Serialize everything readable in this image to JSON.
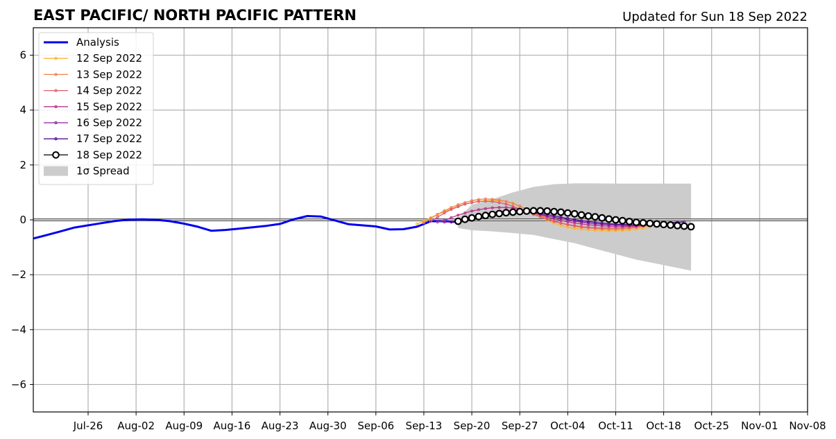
{
  "chart_data": {
    "type": "line",
    "title": "EAST PACIFIC/ NORTH PACIFIC PATTERN",
    "subtitle": "Updated for Sun 18 Sep 2022",
    "xlabel": "",
    "ylabel": "",
    "xlim": [
      "2022-07-18",
      "2022-11-08"
    ],
    "ylim": [
      -7,
      7
    ],
    "grid": true,
    "legend_position": "top-left",
    "xticks": [
      "Jul-26",
      "Aug-02",
      "Aug-09",
      "Aug-16",
      "Aug-23",
      "Aug-30",
      "Sep-06",
      "Sep-13",
      "Sep-20",
      "Sep-27",
      "Oct-04",
      "Oct-11",
      "Oct-18",
      "Oct-25",
      "Nov-01",
      "Nov-08"
    ],
    "yticks": [
      -6,
      -4,
      -2,
      0,
      2,
      4,
      6
    ],
    "ytick_labels": [
      "−6",
      "−4",
      "−2",
      "0",
      "2",
      "4",
      "6"
    ],
    "analysis": {
      "name": "Analysis",
      "color": "#0000ee",
      "points": [
        [
          "2022-07-18",
          -0.68
        ],
        [
          "2022-07-20",
          -0.55
        ],
        [
          "2022-07-22",
          -0.42
        ],
        [
          "2022-07-24",
          -0.28
        ],
        [
          "2022-07-26",
          -0.2
        ],
        [
          "2022-07-28",
          -0.12
        ],
        [
          "2022-07-30",
          -0.04
        ],
        [
          "2022-08-01",
          0.01
        ],
        [
          "2022-08-03",
          0.02
        ],
        [
          "2022-08-05",
          0.0
        ],
        [
          "2022-08-07",
          -0.05
        ],
        [
          "2022-08-09",
          -0.14
        ],
        [
          "2022-08-11",
          -0.25
        ],
        [
          "2022-08-13",
          -0.4
        ],
        [
          "2022-08-15",
          -0.37
        ],
        [
          "2022-08-17",
          -0.32
        ],
        [
          "2022-08-19",
          -0.27
        ],
        [
          "2022-08-21",
          -0.22
        ],
        [
          "2022-08-23",
          -0.15
        ],
        [
          "2022-08-25",
          0.02
        ],
        [
          "2022-08-27",
          0.14
        ],
        [
          "2022-08-29",
          0.12
        ],
        [
          "2022-08-31",
          -0.02
        ],
        [
          "2022-09-02",
          -0.16
        ],
        [
          "2022-09-04",
          -0.2
        ],
        [
          "2022-09-06",
          -0.24
        ],
        [
          "2022-09-08",
          -0.35
        ],
        [
          "2022-09-10",
          -0.34
        ],
        [
          "2022-09-12",
          -0.25
        ],
        [
          "2022-09-14",
          -0.05
        ],
        [
          "2022-09-16",
          -0.05
        ],
        [
          "2022-09-18",
          -0.08
        ]
      ]
    },
    "spread": {
      "name": "1σ Spread",
      "color": "#cccccc",
      "x": [
        "2022-09-18",
        "2022-09-20",
        "2022-09-23",
        "2022-09-26",
        "2022-09-29",
        "2022-10-02",
        "2022-10-05",
        "2022-10-08",
        "2022-10-11",
        "2022-10-14",
        "2022-10-17",
        "2022-10-20",
        "2022-10-22"
      ],
      "upper": [
        0.05,
        0.55,
        0.75,
        1.0,
        1.2,
        1.3,
        1.33,
        1.33,
        1.32,
        1.32,
        1.32,
        1.32,
        1.32
      ],
      "lower": [
        -0.3,
        -0.38,
        -0.42,
        -0.48,
        -0.55,
        -0.7,
        -0.85,
        -1.05,
        -1.25,
        -1.45,
        -1.6,
        -1.75,
        -1.85
      ]
    },
    "series": [
      {
        "name": "12 Sep 2022",
        "color": "#fdb42f",
        "start": "2022-09-12",
        "values": [
          -0.15,
          -0.05,
          0.08,
          0.2,
          0.3,
          0.4,
          0.5,
          0.57,
          0.63,
          0.68,
          0.7,
          0.71,
          0.7,
          0.67,
          0.6,
          0.5,
          0.38,
          0.25,
          0.12,
          -0.02,
          -0.12,
          -0.2,
          -0.27,
          -0.31,
          -0.34,
          -0.36,
          -0.38,
          -0.39,
          -0.4,
          -0.4,
          -0.39,
          -0.37,
          -0.34,
          -0.3,
          -0.25
        ]
      },
      {
        "name": "13 Sep 2022",
        "color": "#f0804a",
        "start": "2022-09-13",
        "values": [
          -0.1,
          0.05,
          0.2,
          0.33,
          0.45,
          0.55,
          0.63,
          0.7,
          0.74,
          0.76,
          0.75,
          0.72,
          0.67,
          0.6,
          0.5,
          0.39,
          0.27,
          0.15,
          0.05,
          -0.04,
          -0.12,
          -0.18,
          -0.23,
          -0.27,
          -0.29,
          -0.31,
          -0.33,
          -0.34,
          -0.34,
          -0.33,
          -0.31,
          -0.28,
          -0.24,
          -0.2,
          -0.16
        ]
      },
      {
        "name": "14 Sep 2022",
        "color": "#dc5b6f",
        "start": "2022-09-14",
        "values": [
          -0.05,
          0.1,
          0.25,
          0.38,
          0.48,
          0.57,
          0.63,
          0.67,
          0.68,
          0.67,
          0.63,
          0.57,
          0.49,
          0.4,
          0.3,
          0.2,
          0.11,
          0.02,
          -0.06,
          -0.12,
          -0.17,
          -0.21,
          -0.25,
          -0.27,
          -0.29,
          -0.3,
          -0.3,
          -0.3,
          -0.29,
          -0.27,
          -0.25,
          -0.22,
          -0.19,
          -0.16,
          -0.13
        ]
      },
      {
        "name": "15 Sep 2022",
        "color": "#b83289",
        "start": "2022-09-15",
        "values": [
          -0.08,
          -0.02,
          0.08,
          0.17,
          0.25,
          0.32,
          0.37,
          0.41,
          0.44,
          0.45,
          0.45,
          0.43,
          0.39,
          0.33,
          0.26,
          0.18,
          0.11,
          0.04,
          -0.02,
          -0.07,
          -0.11,
          -0.15,
          -0.18,
          -0.2,
          -0.22,
          -0.23,
          -0.24,
          -0.24,
          -0.23,
          -0.22,
          -0.2,
          -0.18,
          -0.15,
          -0.12,
          -0.1
        ]
      },
      {
        "name": "16 Sep 2022",
        "color": "#8b1a9a",
        "start": "2022-09-16",
        "values": [
          -0.08,
          -0.07,
          -0.04,
          0.02,
          0.08,
          0.15,
          0.21,
          0.26,
          0.3,
          0.32,
          0.33,
          0.33,
          0.3,
          0.26,
          0.21,
          0.15,
          0.1,
          0.05,
          0.0,
          -0.04,
          -0.08,
          -0.11,
          -0.14,
          -0.16,
          -0.18,
          -0.19,
          -0.2,
          -0.2,
          -0.2,
          -0.19,
          -0.17,
          -0.15,
          -0.13,
          -0.1,
          -0.08
        ]
      },
      {
        "name": "17 Sep 2022",
        "color": "#4e0d94",
        "start": "2022-09-17",
        "values": [
          -0.08,
          -0.08,
          -0.05,
          -0.01,
          0.04,
          0.1,
          0.15,
          0.2,
          0.24,
          0.27,
          0.29,
          0.29,
          0.27,
          0.24,
          0.2,
          0.15,
          0.1,
          0.05,
          0.01,
          -0.03,
          -0.06,
          -0.09,
          -0.12,
          -0.14,
          -0.16,
          -0.17,
          -0.18,
          -0.18,
          -0.18,
          -0.17,
          -0.15,
          -0.13,
          -0.11,
          -0.09,
          -0.07
        ]
      },
      {
        "name": "18 Sep 2022",
        "color": "#000000",
        "start": "2022-09-18",
        "hollow": true,
        "values": [
          -0.05,
          0.02,
          0.07,
          0.12,
          0.16,
          0.2,
          0.23,
          0.26,
          0.28,
          0.3,
          0.32,
          0.33,
          0.33,
          0.32,
          0.3,
          0.28,
          0.25,
          0.22,
          0.18,
          0.14,
          0.11,
          0.07,
          0.03,
          0.0,
          -0.03,
          -0.06,
          -0.09,
          -0.11,
          -0.13,
          -0.15,
          -0.17,
          -0.19,
          -0.21,
          -0.23,
          -0.25
        ]
      }
    ]
  }
}
